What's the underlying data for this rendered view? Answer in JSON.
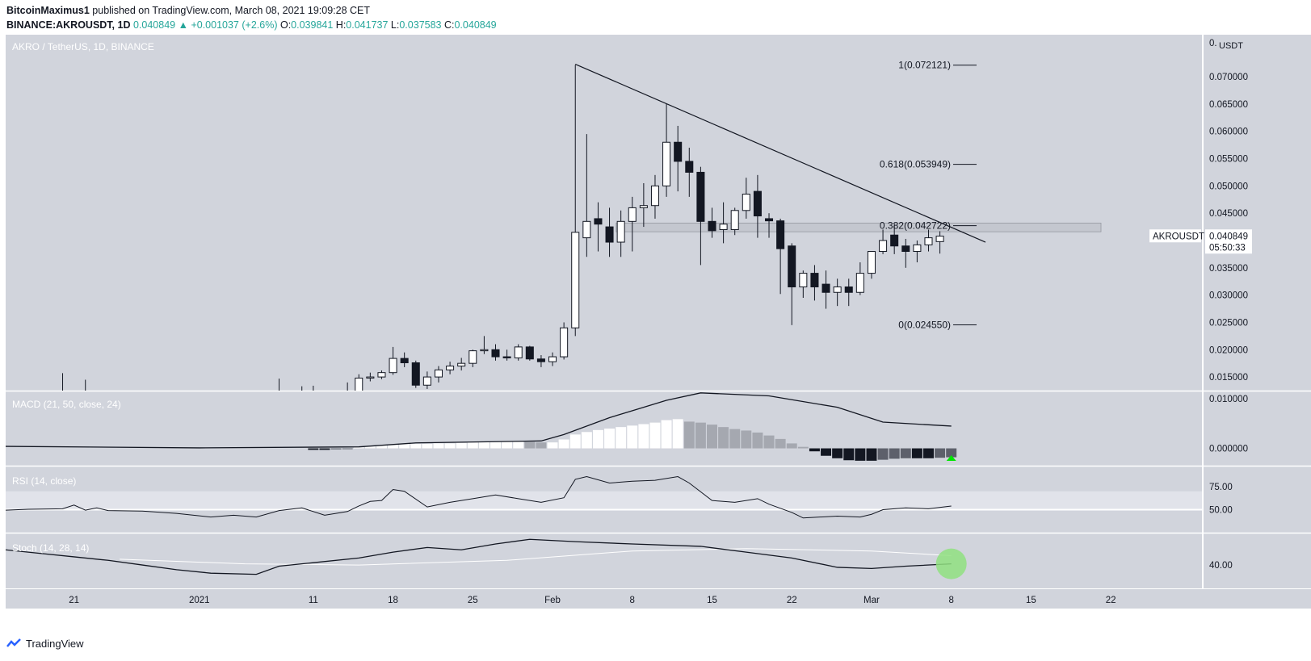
{
  "header": {
    "author": "BitcoinMaximus1",
    "published_text": "published on TradingView.com, March 08, 2021 19:09:28 CET",
    "symbol": "BINANCE:AKROUSDT, 1D",
    "last_price": "0.040849",
    "change": "+0.001037 (+2.6%)",
    "open_label": "O:",
    "open": "0.039841",
    "high_label": "H:",
    "high": "0.041737",
    "low_label": "L:",
    "low": "0.037583",
    "close_label": "C:",
    "close": "0.040849"
  },
  "colors": {
    "bg_price": "#d1d4dc",
    "bg_indicators": "#d1d4dc",
    "up_body": "#ffffff",
    "down_body": "#131722",
    "accent": "#26a69a",
    "green_marker": "#00e600",
    "circle": "#90e080"
  },
  "footer": {
    "brand": "TradingView"
  },
  "chart_data": {
    "type": "candlestick",
    "pair_label": "AKRO / TetherUS, 1D, BINANCE",
    "currency_label": "USDT",
    "currency_prefix": "0.",
    "price_axis": {
      "ylim": [
        0.0125,
        0.0777
      ],
      "ticks": [
        "0.070000",
        "0.065000",
        "0.060000",
        "0.055000",
        "0.050000",
        "0.045000",
        "0.040000",
        "0.035000",
        "0.030000",
        "0.025000",
        "0.020000",
        "0.015000"
      ],
      "tick_values": [
        0.07,
        0.065,
        0.06,
        0.055,
        0.05,
        0.045,
        0.04,
        0.035,
        0.03,
        0.025,
        0.02,
        0.015
      ]
    },
    "x_axis": {
      "tick_labels": [
        "21",
        "2021",
        "11",
        "18",
        "25",
        "Feb",
        "8",
        "15",
        "22",
        "Mar",
        "8",
        "15",
        "22"
      ],
      "tick_dates": [
        "2020-12-21",
        "2021-01-01",
        "2021-01-11",
        "2021-01-18",
        "2021-01-25",
        "2021-02-01",
        "2021-02-08",
        "2021-02-15",
        "2021-02-22",
        "2021-03-01",
        "2021-03-08",
        "2021-03-15",
        "2021-03-22"
      ],
      "range": [
        "2020-12-15",
        "2021-03-30"
      ]
    },
    "last_price_label": "AKROUSDT",
    "last_price_value": "0.040849",
    "countdown": "05:50:33",
    "fib_levels": [
      {
        "label": "1(0.072121)",
        "value": 0.072121
      },
      {
        "label": "0.618(0.053949)",
        "value": 0.053949
      },
      {
        "label": "0.382(0.042722)",
        "value": 0.042722
      },
      {
        "label": "0(0.024550)",
        "value": 0.02455
      }
    ],
    "resistance_zone": [
      0.0416,
      0.0432
    ],
    "trendline": [
      [
        "2021-02-03",
        0.0723
      ],
      [
        "2021-03-11",
        0.0397
      ]
    ],
    "candles": [
      [
        "2020-12-20",
        0.0095,
        0.0157,
        0.0094,
        0.01
      ],
      [
        "2020-12-22",
        0.01,
        0.0145,
        0.0097,
        0.0102
      ],
      [
        "2021-01-08",
        0.0101,
        0.0147,
        0.0099,
        0.0104
      ],
      [
        "2021-01-10",
        0.0104,
        0.0133,
        0.01,
        0.0107
      ],
      [
        "2021-01-11",
        0.0107,
        0.0134,
        0.0102,
        0.011
      ],
      [
        "2021-01-14",
        0.011,
        0.014,
        0.0106,
        0.0124
      ],
      [
        "2021-01-15",
        0.0124,
        0.0155,
        0.012,
        0.0148
      ],
      [
        "2021-01-16",
        0.0148,
        0.0158,
        0.0142,
        0.015
      ],
      [
        "2021-01-17",
        0.015,
        0.0162,
        0.0146,
        0.0158
      ],
      [
        "2021-01-18",
        0.0158,
        0.0205,
        0.0154,
        0.0184
      ],
      [
        "2021-01-19",
        0.0184,
        0.0195,
        0.0168,
        0.0176
      ],
      [
        "2021-01-20",
        0.0176,
        0.018,
        0.013,
        0.0135
      ],
      [
        "2021-01-21",
        0.0135,
        0.016,
        0.0128,
        0.015
      ],
      [
        "2021-01-22",
        0.015,
        0.017,
        0.014,
        0.0163
      ],
      [
        "2021-01-23",
        0.0163,
        0.0178,
        0.0155,
        0.017
      ],
      [
        "2021-01-24",
        0.017,
        0.0185,
        0.0162,
        0.0175
      ],
      [
        "2021-01-25",
        0.0175,
        0.02,
        0.0168,
        0.0198
      ],
      [
        "2021-01-26",
        0.0198,
        0.0225,
        0.0192,
        0.02
      ],
      [
        "2021-01-27",
        0.02,
        0.021,
        0.018,
        0.0187
      ],
      [
        "2021-01-28",
        0.0187,
        0.02,
        0.018,
        0.0185
      ],
      [
        "2021-01-29",
        0.0185,
        0.021,
        0.018,
        0.0205
      ],
      [
        "2021-01-30",
        0.0205,
        0.0207,
        0.018,
        0.0183
      ],
      [
        "2021-01-31",
        0.0183,
        0.019,
        0.0168,
        0.0178
      ],
      [
        "2021-02-01",
        0.0178,
        0.0195,
        0.017,
        0.0187
      ],
      [
        "2021-02-02",
        0.0187,
        0.025,
        0.0182,
        0.024
      ],
      [
        "2021-02-03",
        0.024,
        0.0722,
        0.0225,
        0.0415
      ],
      [
        "2021-02-04",
        0.0405,
        0.0595,
        0.037,
        0.0435
      ],
      [
        "2021-02-05",
        0.044,
        0.047,
        0.038,
        0.043
      ],
      [
        "2021-02-06",
        0.0425,
        0.046,
        0.037,
        0.0397
      ],
      [
        "2021-02-07",
        0.0397,
        0.0455,
        0.037,
        0.0435
      ],
      [
        "2021-02-08",
        0.0435,
        0.048,
        0.038,
        0.046
      ],
      [
        "2021-02-09",
        0.046,
        0.0505,
        0.0425,
        0.0464
      ],
      [
        "2021-02-10",
        0.0464,
        0.052,
        0.044,
        0.05
      ],
      [
        "2021-02-11",
        0.05,
        0.065,
        0.048,
        0.058
      ],
      [
        "2021-02-12",
        0.058,
        0.061,
        0.049,
        0.0545
      ],
      [
        "2021-02-13",
        0.0545,
        0.057,
        0.048,
        0.0525
      ],
      [
        "2021-02-14",
        0.0525,
        0.0535,
        0.0355,
        0.0435
      ],
      [
        "2021-02-15",
        0.0435,
        0.046,
        0.0405,
        0.0418
      ],
      [
        "2021-02-16",
        0.042,
        0.047,
        0.0395,
        0.043
      ],
      [
        "2021-02-17",
        0.042,
        0.046,
        0.041,
        0.0455
      ],
      [
        "2021-02-18",
        0.0455,
        0.0515,
        0.044,
        0.0485
      ],
      [
        "2021-02-19",
        0.049,
        0.052,
        0.0405,
        0.0445
      ],
      [
        "2021-02-20",
        0.044,
        0.045,
        0.0405,
        0.0436
      ],
      [
        "2021-02-21",
        0.0436,
        0.044,
        0.0302,
        0.0385
      ],
      [
        "2021-02-22",
        0.039,
        0.0395,
        0.0245,
        0.0315
      ],
      [
        "2021-02-23",
        0.0315,
        0.0345,
        0.0295,
        0.034
      ],
      [
        "2021-02-24",
        0.034,
        0.0355,
        0.029,
        0.0315
      ],
      [
        "2021-02-25",
        0.032,
        0.0345,
        0.0275,
        0.0305
      ],
      [
        "2021-02-26",
        0.0305,
        0.033,
        0.028,
        0.0315
      ],
      [
        "2021-02-27",
        0.0315,
        0.033,
        0.028,
        0.0305
      ],
      [
        "2021-02-28",
        0.0305,
        0.036,
        0.03,
        0.034
      ],
      [
        "2021-03-01",
        0.034,
        0.038,
        0.033,
        0.038
      ],
      [
        "2021-03-02",
        0.038,
        0.042,
        0.0375,
        0.04
      ],
      [
        "2021-03-03",
        0.041,
        0.0428,
        0.0375,
        0.039
      ],
      [
        "2021-03-04",
        0.039,
        0.0403,
        0.035,
        0.038
      ],
      [
        "2021-03-05",
        0.038,
        0.04,
        0.036,
        0.0392
      ],
      [
        "2021-03-06",
        0.0392,
        0.042,
        0.038,
        0.0405
      ],
      [
        "2021-03-07",
        0.0398,
        0.0417,
        0.0376,
        0.0408
      ]
    ],
    "macd": {
      "label": "MACD (21, 50, close, 24)",
      "ylim": [
        -0.0035,
        0.0115
      ],
      "ticks": [
        "0.010000",
        "0.000000"
      ],
      "tick_values": [
        0.01,
        0.0
      ],
      "line": [
        [
          "2020-12-15",
          0.0004
        ],
        [
          "2021-01-01",
          0.0001
        ],
        [
          "2021-01-15",
          0.0003
        ],
        [
          "2021-01-20",
          0.0011
        ],
        [
          "2021-01-31",
          0.0015
        ],
        [
          "2021-02-02",
          0.0028
        ],
        [
          "2021-02-06",
          0.0062
        ],
        [
          "2021-02-11",
          0.0097
        ],
        [
          "2021-02-14",
          0.0112
        ],
        [
          "2021-02-20",
          0.0106
        ],
        [
          "2021-02-26",
          0.0083
        ],
        [
          "2021-03-02",
          0.0053
        ],
        [
          "2021-03-08",
          0.0045
        ]
      ],
      "histogram": [
        [
          "2021-01-11",
          -0.0003
        ],
        [
          "2021-01-12",
          -0.0003
        ],
        [
          "2021-01-13",
          -0.0002
        ],
        [
          "2021-01-14",
          -0.0001
        ],
        [
          "2021-01-15",
          0.0002
        ],
        [
          "2021-01-16",
          0.0004
        ],
        [
          "2021-01-17",
          0.0006
        ],
        [
          "2021-01-18",
          0.0008
        ],
        [
          "2021-01-19",
          0.0009
        ],
        [
          "2021-01-20",
          0.0009
        ],
        [
          "2021-01-21",
          0.0009
        ],
        [
          "2021-01-22",
          0.001
        ],
        [
          "2021-01-23",
          0.001
        ],
        [
          "2021-01-24",
          0.0011
        ],
        [
          "2021-01-25",
          0.0012
        ],
        [
          "2021-01-26",
          0.0013
        ],
        [
          "2021-01-27",
          0.0013
        ],
        [
          "2021-01-28",
          0.0013
        ],
        [
          "2021-01-29",
          0.0014
        ],
        [
          "2021-01-30",
          0.0013
        ],
        [
          "2021-01-31",
          0.0012
        ],
        [
          "2021-02-01",
          0.0012
        ],
        [
          "2021-02-02",
          0.0018
        ],
        [
          "2021-02-03",
          0.0028
        ],
        [
          "2021-02-04",
          0.0033
        ],
        [
          "2021-02-05",
          0.0037
        ],
        [
          "2021-02-06",
          0.004
        ],
        [
          "2021-02-07",
          0.0043
        ],
        [
          "2021-02-08",
          0.0046
        ],
        [
          "2021-02-09",
          0.0049
        ],
        [
          "2021-02-10",
          0.0052
        ],
        [
          "2021-02-11",
          0.0057
        ],
        [
          "2021-02-12",
          0.0059
        ],
        [
          "2021-02-13",
          0.0054
        ],
        [
          "2021-02-14",
          0.0052
        ],
        [
          "2021-02-15",
          0.0048
        ],
        [
          "2021-02-16",
          0.0043
        ],
        [
          "2021-02-17",
          0.0039
        ],
        [
          "2021-02-18",
          0.0036
        ],
        [
          "2021-02-19",
          0.0032
        ],
        [
          "2021-02-20",
          0.0026
        ],
        [
          "2021-02-21",
          0.0019
        ],
        [
          "2021-02-22",
          0.001
        ],
        [
          "2021-02-23",
          0.0003
        ],
        [
          "2021-02-24",
          -0.0006
        ],
        [
          "2021-02-25",
          -0.0015
        ],
        [
          "2021-02-26",
          -0.002
        ],
        [
          "2021-02-27",
          -0.0024
        ],
        [
          "2021-02-28",
          -0.0025
        ],
        [
          "2021-03-01",
          -0.0025
        ],
        [
          "2021-03-02",
          -0.0023
        ],
        [
          "2021-03-03",
          -0.0021
        ],
        [
          "2021-03-04",
          -0.002
        ],
        [
          "2021-03-05",
          -0.002
        ],
        [
          "2021-03-06",
          -0.002
        ],
        [
          "2021-03-07",
          -0.0019
        ],
        [
          "2021-03-08",
          -0.0018
        ]
      ]
    },
    "rsi": {
      "label": "RSI (14, close)",
      "ylim": [
        25,
        97
      ],
      "ticks": [
        "75.00",
        "50.00"
      ],
      "tick_values": [
        75,
        50
      ],
      "band": [
        50,
        70
      ],
      "values": [
        [
          "2020-12-15",
          49.5
        ],
        [
          "2020-12-17",
          50.5
        ],
        [
          "2020-12-20",
          51
        ],
        [
          "2020-12-21",
          55
        ],
        [
          "2020-12-22",
          49.5
        ],
        [
          "2020-12-23",
          52
        ],
        [
          "2020-12-24",
          49
        ],
        [
          "2020-12-27",
          48.5
        ],
        [
          "2020-12-30",
          46
        ],
        [
          "2021-01-02",
          42
        ],
        [
          "2021-01-04",
          44
        ],
        [
          "2021-01-06",
          42
        ],
        [
          "2021-01-08",
          49
        ],
        [
          "2021-01-10",
          52
        ],
        [
          "2021-01-12",
          44
        ],
        [
          "2021-01-14",
          48
        ],
        [
          "2021-01-15",
          54
        ],
        [
          "2021-01-16",
          59
        ],
        [
          "2021-01-17",
          60
        ],
        [
          "2021-01-18",
          72
        ],
        [
          "2021-01-19",
          70
        ],
        [
          "2021-01-21",
          53
        ],
        [
          "2021-01-23",
          58
        ],
        [
          "2021-01-25",
          62
        ],
        [
          "2021-01-27",
          66
        ],
        [
          "2021-01-29",
          62
        ],
        [
          "2021-01-31",
          58
        ],
        [
          "2021-02-02",
          63
        ],
        [
          "2021-02-03",
          83
        ],
        [
          "2021-02-04",
          86
        ],
        [
          "2021-02-06",
          79
        ],
        [
          "2021-02-08",
          81
        ],
        [
          "2021-02-10",
          82
        ],
        [
          "2021-02-12",
          86
        ],
        [
          "2021-02-13",
          79
        ],
        [
          "2021-02-15",
          60
        ],
        [
          "2021-02-17",
          58
        ],
        [
          "2021-02-19",
          62
        ],
        [
          "2021-02-20",
          56
        ],
        [
          "2021-02-22",
          47
        ],
        [
          "2021-02-23",
          41
        ],
        [
          "2021-02-26",
          43
        ],
        [
          "2021-02-28",
          42
        ],
        [
          "2021-03-01",
          45
        ],
        [
          "2021-03-02",
          50
        ],
        [
          "2021-03-04",
          52
        ],
        [
          "2021-03-06",
          51
        ],
        [
          "2021-03-08",
          54
        ]
      ]
    },
    "stoch": {
      "label": "Stoch (14, 28, 14)",
      "ylim": [
        20,
        67
      ],
      "ticks": [
        "40.00"
      ],
      "tick_values": [
        40
      ],
      "k": [
        [
          "2020-12-15",
          53
        ],
        [
          "2020-12-18",
          50
        ],
        [
          "2020-12-21",
          47
        ],
        [
          "2020-12-24",
          44
        ],
        [
          "2020-12-27",
          40
        ],
        [
          "2020-12-30",
          36
        ],
        [
          "2021-01-02",
          33
        ],
        [
          "2021-01-06",
          32
        ],
        [
          "2021-01-08",
          39
        ],
        [
          "2021-01-11",
          42
        ],
        [
          "2021-01-15",
          46
        ],
        [
          "2021-01-18",
          51
        ],
        [
          "2021-01-21",
          55
        ],
        [
          "2021-01-24",
          53
        ],
        [
          "2021-01-27",
          58
        ],
        [
          "2021-01-30",
          62
        ],
        [
          "2021-02-03",
          60
        ],
        [
          "2021-02-08",
          58
        ],
        [
          "2021-02-14",
          56
        ],
        [
          "2021-02-18",
          51
        ],
        [
          "2021-02-22",
          46
        ],
        [
          "2021-02-26",
          38
        ],
        [
          "2021-03-01",
          37
        ],
        [
          "2021-03-04",
          39
        ],
        [
          "2021-03-08",
          41
        ]
      ],
      "d": [
        [
          "2020-12-25",
          45
        ],
        [
          "2021-01-05",
          41
        ],
        [
          "2021-01-15",
          40
        ],
        [
          "2021-01-28",
          44
        ],
        [
          "2021-02-08",
          52
        ],
        [
          "2021-02-18",
          54
        ],
        [
          "2021-03-01",
          52
        ],
        [
          "2021-03-08",
          48
        ]
      ]
    }
  }
}
